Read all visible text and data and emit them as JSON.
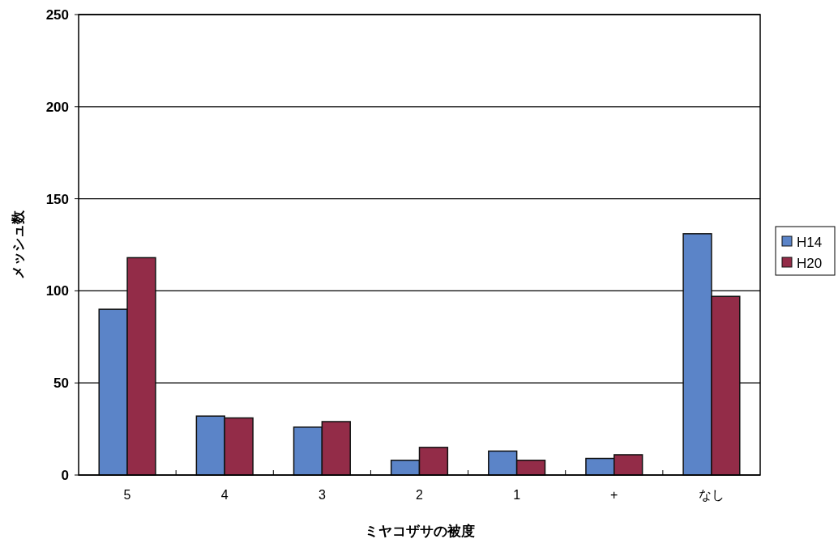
{
  "chart_data": {
    "type": "bar",
    "xlabel": "ミヤコザサの被度",
    "ylabel": "メッシュ数",
    "categories": [
      "5",
      "4",
      "3",
      "2",
      "1",
      "+",
      "なし"
    ],
    "series": [
      {
        "name": "H14",
        "color": "#5b84c8",
        "values": [
          90,
          32,
          26,
          8,
          13,
          9,
          131
        ]
      },
      {
        "name": "H20",
        "color": "#932c48",
        "values": [
          118,
          31,
          29,
          15,
          8,
          11,
          97
        ]
      }
    ],
    "ylim": [
      0,
      250
    ],
    "yticks": [
      0,
      50,
      100,
      150,
      200,
      250
    ],
    "grid": "y",
    "legend": "right"
  }
}
